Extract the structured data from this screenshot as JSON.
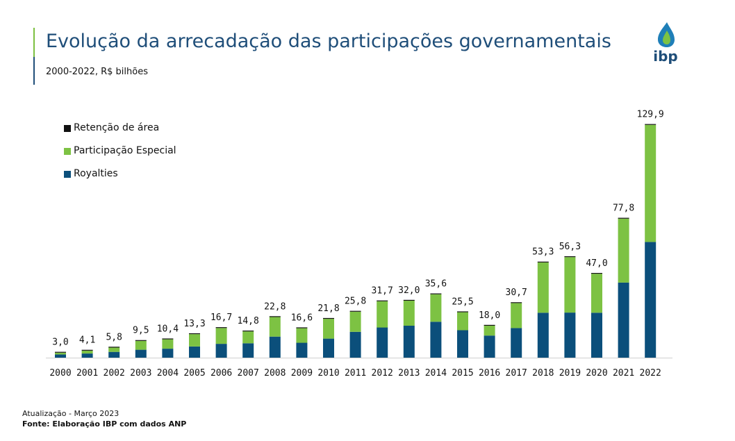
{
  "header": {
    "title": "Evolução da arrecadação das participações governamentais",
    "subtitle": "2000-2022, R$ bilhões"
  },
  "logo": {
    "text": "ibp",
    "icon": "drop-flame-icon"
  },
  "footer": {
    "update": "Atualização - Março 2023",
    "source": "Fonte: Elaboração IBP com dados ANP"
  },
  "colors": {
    "royalties": "#0b4f7b",
    "participacao": "#7dc243",
    "retencao": "#111111",
    "title": "#1f4e79"
  },
  "chart_data": {
    "type": "bar",
    "stacked": true,
    "title": "",
    "xlabel": "",
    "ylabel": "",
    "ylim": [
      0,
      130
    ],
    "grid": false,
    "legend_position": "top-left",
    "categories": [
      "2000",
      "2001",
      "2002",
      "2003",
      "2004",
      "2005",
      "2006",
      "2007",
      "2008",
      "2009",
      "2010",
      "2011",
      "2012",
      "2013",
      "2014",
      "2015",
      "2016",
      "2017",
      "2018",
      "2019",
      "2020",
      "2021",
      "2022"
    ],
    "series": [
      {
        "name": "Royalties",
        "color": "#0b4f7b",
        "values": [
          1.8,
          2.3,
          3.2,
          4.4,
          5.0,
          6.2,
          7.7,
          8.0,
          11.7,
          8.3,
          10.6,
          14.4,
          16.8,
          17.8,
          20.0,
          15.3,
          12.3,
          16.5,
          25.0,
          25.1,
          25.0,
          41.8,
          64.4
        ]
      },
      {
        "name": "Participação Especial",
        "color": "#7dc243",
        "values": [
          1.0,
          1.6,
          2.4,
          4.9,
          5.2,
          6.9,
          8.8,
          6.6,
          10.9,
          8.1,
          11.0,
          11.2,
          14.6,
          13.9,
          15.3,
          10.0,
          5.5,
          13.9,
          28.0,
          30.9,
          21.7,
          35.6,
          65.2
        ]
      },
      {
        "name": "Retenção de área",
        "color": "#111111",
        "values": [
          0.2,
          0.2,
          0.2,
          0.2,
          0.2,
          0.2,
          0.2,
          0.2,
          0.2,
          0.2,
          0.2,
          0.2,
          0.3,
          0.3,
          0.3,
          0.2,
          0.2,
          0.3,
          0.3,
          0.3,
          0.3,
          0.4,
          0.3
        ]
      }
    ],
    "totals": [
      "3,0",
      "4,1",
      "5,8",
      "9,5",
      "10,4",
      "13,3",
      "16,7",
      "14,8",
      "22,8",
      "16,6",
      "21,8",
      "25,8",
      "31,7",
      "32,0",
      "35,6",
      "25,5",
      "18,0",
      "30,7",
      "53,3",
      "56,3",
      "47,0",
      "77,8",
      "129,9"
    ],
    "legend": [
      "Retenção de área",
      "Participação Especial",
      "Royalties"
    ]
  }
}
